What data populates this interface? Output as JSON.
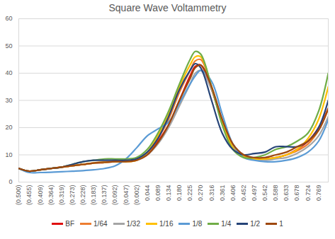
{
  "chart_data": {
    "type": "line",
    "title": "Square Wave Voltammetry",
    "x": [
      -0.5,
      -0.455,
      -0.409,
      -0.364,
      -0.319,
      -0.273,
      -0.228,
      -0.183,
      -0.137,
      -0.092,
      -0.047,
      -0.002,
      0.044,
      0.089,
      0.134,
      0.18,
      0.225,
      0.247,
      0.27,
      0.316,
      0.361,
      0.406,
      0.452,
      0.497,
      0.542,
      0.588,
      0.633,
      0.678,
      0.724,
      0.769,
      0.81
    ],
    "series": [
      {
        "name": "BF",
        "color": "#e01010",
        "values": [
          5,
          4,
          4.5,
          5,
          5.5,
          6,
          6.5,
          7,
          7.2,
          7.5,
          7.5,
          8,
          10,
          15,
          21,
          30,
          39,
          42.5,
          43,
          34,
          22,
          13,
          9.5,
          8.5,
          8.5,
          9,
          10,
          12,
          15,
          20,
          27
        ]
      },
      {
        "name": "1/64",
        "color": "#ed7d31",
        "values": [
          5,
          4,
          4.5,
          5,
          5.5,
          6,
          6.5,
          7,
          7.2,
          7.5,
          7.5,
          8,
          10.5,
          16,
          23,
          33,
          41,
          44.5,
          45,
          35,
          22,
          13,
          9.5,
          8.5,
          8.5,
          9,
          10,
          11.5,
          14,
          19,
          27
        ]
      },
      {
        "name": "1/32",
        "color": "#a5a5a5",
        "values": [
          5,
          4,
          4.5,
          5,
          5.5,
          6,
          6.5,
          7,
          7.2,
          7.5,
          7.5,
          8,
          10,
          14,
          20,
          28,
          36,
          40,
          41,
          34,
          23,
          14,
          10,
          8.5,
          8,
          8.5,
          9,
          10.5,
          13,
          17,
          24
        ]
      },
      {
        "name": "1/16",
        "color": "#ffc000",
        "values": [
          5,
          4,
          4.5,
          5,
          5.5,
          6,
          6.5,
          7,
          7.3,
          7.5,
          7.5,
          8,
          11,
          17,
          25,
          35,
          43,
          46,
          46,
          35,
          22,
          13,
          9.5,
          8.5,
          8.5,
          9,
          10,
          12,
          16,
          23,
          35
        ]
      },
      {
        "name": "1/8",
        "color": "#5b9bd5",
        "values": [
          5,
          3.5,
          3.5,
          3.6,
          3.8,
          4,
          4.2,
          4.5,
          5,
          6,
          8.5,
          12.5,
          17,
          19.5,
          22,
          29,
          36,
          39,
          41,
          37,
          25,
          14,
          9,
          8,
          7.5,
          7.5,
          8,
          9,
          11,
          15,
          23
        ]
      },
      {
        "name": "1/4",
        "color": "#70ad47",
        "values": [
          5,
          4,
          4.5,
          5,
          5.5,
          6.5,
          7.5,
          8,
          8.5,
          8.5,
          8.5,
          9,
          12,
          18,
          26,
          36,
          45,
          48,
          47,
          35,
          21,
          12,
          9,
          9,
          10,
          12,
          13,
          15,
          18,
          26,
          40
        ]
      },
      {
        "name": "1/2",
        "color": "#264478",
        "values": [
          5,
          4,
          4.5,
          5,
          5.5,
          6.5,
          7.5,
          8,
          8,
          8,
          8,
          8.5,
          11,
          16,
          24,
          34,
          41,
          43.5,
          42,
          30,
          18,
          12,
          10,
          10.5,
          11,
          13,
          13,
          13,
          15,
          20,
          30
        ]
      },
      {
        "name": "1",
        "color": "#9e480e",
        "values": [
          5,
          4,
          4.5,
          5,
          5.5,
          6,
          6.5,
          7,
          7.3,
          7.5,
          7.5,
          8,
          10,
          14.5,
          21,
          30,
          38,
          42,
          43,
          35,
          23,
          14,
          10,
          9,
          9,
          10,
          11,
          13,
          15,
          19,
          27
        ]
      }
    ],
    "xlim": [
      -0.5,
      0.81
    ],
    "xticks": [
      {
        "value": -0.5,
        "label": "(0.500)"
      },
      {
        "value": -0.455,
        "label": "(0.455)"
      },
      {
        "value": -0.409,
        "label": "(0.409)"
      },
      {
        "value": -0.364,
        "label": "(0.364)"
      },
      {
        "value": -0.319,
        "label": "(0.319)"
      },
      {
        "value": -0.273,
        "label": "(0.273)"
      },
      {
        "value": -0.228,
        "label": "(0.228)"
      },
      {
        "value": -0.183,
        "label": "(0.183)"
      },
      {
        "value": -0.137,
        "label": "(0.137)"
      },
      {
        "value": -0.092,
        "label": "(0.092)"
      },
      {
        "value": -0.047,
        "label": "(0.047)"
      },
      {
        "value": -0.002,
        "label": "(0.002)"
      },
      0.044,
      0.089,
      0.134,
      {
        "value": 0.18,
        "label": "0.180"
      },
      0.225,
      {
        "value": 0.27,
        "label": "0.270"
      },
      0.316,
      0.361,
      0.406,
      0.452,
      0.497,
      0.542,
      0.588,
      0.633,
      0.678,
      0.724,
      0.769
    ],
    "ylim": [
      0,
      60
    ],
    "yticks": [
      0,
      10,
      20,
      30,
      40,
      50,
      60
    ],
    "grid": true,
    "legend": "bottom"
  }
}
